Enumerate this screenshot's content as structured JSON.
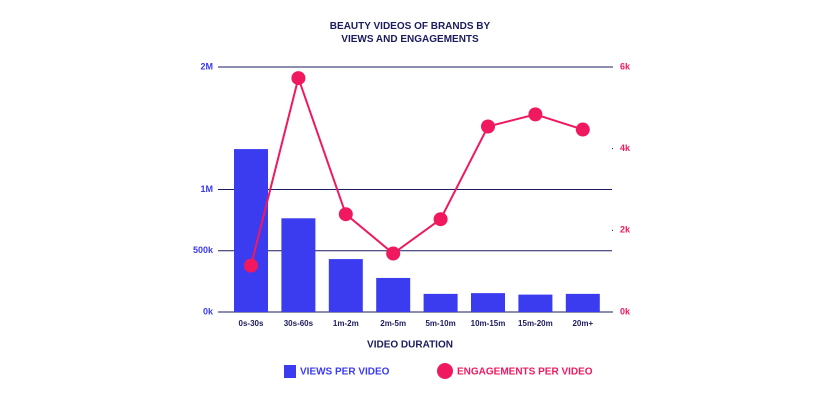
{
  "chart_data": {
    "type": "bar-line",
    "title": "BEAUTY VIDEOS OF BRANDS BY VIEWS AND ENGAGEMENTS",
    "xlabel": "VIDEO DURATION",
    "categories": [
      "0s-30s",
      "30s-60s",
      "1m-2m",
      "2m-5m",
      "5m-10m",
      "10m-15m",
      "15m-20m",
      "20m+"
    ],
    "series": [
      {
        "name": "VIEWS PER VIDEO",
        "type": "bar",
        "color": "#3b3bf0",
        "axis": "y",
        "values": [
          1330000,
          765000,
          432000,
          278000,
          148000,
          154000,
          142000,
          148000
        ]
      },
      {
        "name": "ENGAGEMENTS PER VIDEO",
        "type": "line",
        "color": "#f0195f",
        "axis": "y2",
        "values": [
          1136,
          5728,
          2395,
          1432,
          2272,
          4543,
          4840,
          4469
        ]
      }
    ],
    "ylim": [
      0,
      2000000
    ],
    "yticks": [
      {
        "value": 0,
        "label": "0k"
      },
      {
        "value": 500000,
        "label": "500k"
      },
      {
        "value": 1000000,
        "label": "1M"
      },
      {
        "value": 2000000,
        "label": "2M"
      }
    ],
    "y2lim": [
      0,
      6000
    ],
    "y2ticks": [
      {
        "value": 0,
        "label": "0k"
      },
      {
        "value": 2000,
        "label": "2k"
      },
      {
        "value": 4000,
        "label": "4k"
      },
      {
        "value": 6000,
        "label": "6k"
      }
    ],
    "grid": true,
    "legend": "bottom"
  }
}
